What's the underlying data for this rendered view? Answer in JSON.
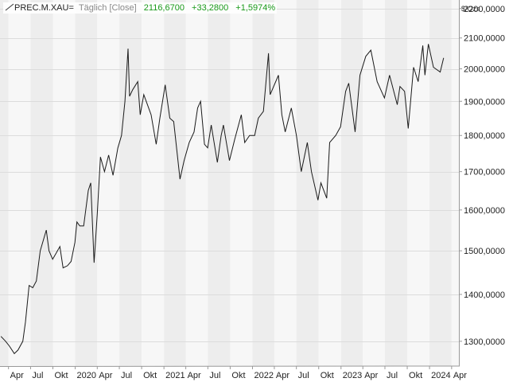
{
  "header": {
    "symbol": "PREC.M.XAU=",
    "period": "Täglich [Close]",
    "last": "2116,6700",
    "change": "+33,2800",
    "change_pct": "+1,5974%"
  },
  "unit": "$/Ozs",
  "colors": {
    "line": "#1a1a1a",
    "positive": "#1a9a1a",
    "band_dark": "#ededed",
    "band_light": "#f7f7f7",
    "grid": "#dcdcdc"
  },
  "chart_data": {
    "type": "line",
    "series": [
      {
        "values": [
          [
            "2019-03-01",
            1310
          ],
          [
            "2019-03-20",
            1300
          ],
          [
            "2019-04-05",
            1290
          ],
          [
            "2019-04-25",
            1275
          ],
          [
            "2019-05-10",
            1282
          ],
          [
            "2019-05-30",
            1300
          ],
          [
            "2019-06-10",
            1340
          ],
          [
            "2019-06-25",
            1420
          ],
          [
            "2019-07-10",
            1415
          ],
          [
            "2019-07-25",
            1430
          ],
          [
            "2019-08-10",
            1500
          ],
          [
            "2019-08-25",
            1530
          ],
          [
            "2019-09-04",
            1550
          ],
          [
            "2019-09-15",
            1500
          ],
          [
            "2019-09-30",
            1480
          ],
          [
            "2019-10-15",
            1495
          ],
          [
            "2019-10-30",
            1510
          ],
          [
            "2019-11-12",
            1460
          ],
          [
            "2019-11-30",
            1465
          ],
          [
            "2019-12-15",
            1475
          ],
          [
            "2019-12-31",
            1520
          ],
          [
            "2020-01-08",
            1570
          ],
          [
            "2020-01-20",
            1560
          ],
          [
            "2020-02-05",
            1560
          ],
          [
            "2020-02-24",
            1650
          ],
          [
            "2020-03-05",
            1670
          ],
          [
            "2020-03-19",
            1472
          ],
          [
            "2020-04-01",
            1590
          ],
          [
            "2020-04-14",
            1740
          ],
          [
            "2020-05-01",
            1700
          ],
          [
            "2020-05-18",
            1745
          ],
          [
            "2020-06-05",
            1690
          ],
          [
            "2020-06-25",
            1765
          ],
          [
            "2020-07-10",
            1800
          ],
          [
            "2020-07-24",
            1900
          ],
          [
            "2020-08-06",
            2065
          ],
          [
            "2020-08-12",
            1915
          ],
          [
            "2020-08-25",
            1935
          ],
          [
            "2020-09-15",
            1960
          ],
          [
            "2020-09-25",
            1860
          ],
          [
            "2020-10-10",
            1920
          ],
          [
            "2020-10-30",
            1880
          ],
          [
            "2020-11-09",
            1860
          ],
          [
            "2020-11-30",
            1775
          ],
          [
            "2020-12-15",
            1850
          ],
          [
            "2021-01-06",
            1950
          ],
          [
            "2021-01-25",
            1850
          ],
          [
            "2021-02-10",
            1840
          ],
          [
            "2021-03-08",
            1680
          ],
          [
            "2021-03-25",
            1730
          ],
          [
            "2021-04-15",
            1780
          ],
          [
            "2021-05-05",
            1810
          ],
          [
            "2021-05-20",
            1880
          ],
          [
            "2021-06-01",
            1900
          ],
          [
            "2021-06-17",
            1775
          ],
          [
            "2021-06-30",
            1765
          ],
          [
            "2021-07-15",
            1830
          ],
          [
            "2021-08-09",
            1725
          ],
          [
            "2021-08-25",
            1800
          ],
          [
            "2021-09-03",
            1830
          ],
          [
            "2021-09-28",
            1730
          ],
          [
            "2021-10-20",
            1790
          ],
          [
            "2021-11-16",
            1860
          ],
          [
            "2021-11-30",
            1780
          ],
          [
            "2021-12-20",
            1800
          ],
          [
            "2022-01-10",
            1800
          ],
          [
            "2022-01-25",
            1850
          ],
          [
            "2022-02-15",
            1870
          ],
          [
            "2022-03-08",
            2050
          ],
          [
            "2022-03-15",
            1920
          ],
          [
            "2022-04-18",
            1980
          ],
          [
            "2022-05-02",
            1860
          ],
          [
            "2022-05-16",
            1810
          ],
          [
            "2022-06-10",
            1880
          ],
          [
            "2022-07-01",
            1800
          ],
          [
            "2022-07-21",
            1700
          ],
          [
            "2022-08-15",
            1780
          ],
          [
            "2022-09-01",
            1700
          ],
          [
            "2022-09-28",
            1625
          ],
          [
            "2022-10-10",
            1670
          ],
          [
            "2022-11-03",
            1630
          ],
          [
            "2022-11-15",
            1780
          ],
          [
            "2022-12-10",
            1800
          ],
          [
            "2022-12-30",
            1825
          ],
          [
            "2023-01-20",
            1930
          ],
          [
            "2023-02-02",
            1955
          ],
          [
            "2023-02-28",
            1810
          ],
          [
            "2023-03-20",
            1980
          ],
          [
            "2023-04-13",
            2040
          ],
          [
            "2023-05-04",
            2060
          ],
          [
            "2023-05-30",
            1960
          ],
          [
            "2023-06-29",
            1910
          ],
          [
            "2023-07-20",
            1980
          ],
          [
            "2023-08-21",
            1890
          ],
          [
            "2023-09-01",
            1945
          ],
          [
            "2023-09-20",
            1930
          ],
          [
            "2023-10-05",
            1820
          ],
          [
            "2023-10-27",
            2005
          ],
          [
            "2023-11-15",
            1960
          ],
          [
            "2023-12-04",
            2075
          ],
          [
            "2023-12-13",
            1980
          ],
          [
            "2023-12-27",
            2080
          ],
          [
            "2024-01-17",
            2005
          ],
          [
            "2024-02-14",
            1990
          ],
          [
            "2024-02-28",
            2035
          ]
        ]
      }
    ],
    "y_ticks": [
      "2200,0000",
      "2100,0000",
      "2000,0000",
      "1900,0000",
      "1800,0000",
      "1700,0000",
      "1600,0000",
      "1500,0000",
      "1400,0000",
      "1300,0000"
    ],
    "y_tick_values": [
      2200,
      2100,
      2000,
      1900,
      1800,
      1700,
      1600,
      1500,
      1400,
      1300
    ],
    "x_ticks": [
      {
        "date": "2019-04-01",
        "label": "Apr"
      },
      {
        "date": "2019-07-01",
        "label": "Jul"
      },
      {
        "date": "2019-10-01",
        "label": "Okt"
      },
      {
        "date": "2020-01-01",
        "label": "2020"
      },
      {
        "date": "2020-04-01",
        "label": "Apr"
      },
      {
        "date": "2020-07-01",
        "label": "Jul"
      },
      {
        "date": "2020-10-01",
        "label": "Okt"
      },
      {
        "date": "2021-01-01",
        "label": "2021"
      },
      {
        "date": "2021-04-01",
        "label": "Apr"
      },
      {
        "date": "2021-07-01",
        "label": "Jul"
      },
      {
        "date": "2021-10-01",
        "label": "Okt"
      },
      {
        "date": "2022-01-01",
        "label": "2022"
      },
      {
        "date": "2022-04-01",
        "label": "Apr"
      },
      {
        "date": "2022-07-01",
        "label": "Jul"
      },
      {
        "date": "2022-10-01",
        "label": "Okt"
      },
      {
        "date": "2023-01-01",
        "label": "2023"
      },
      {
        "date": "2023-04-01",
        "label": "Apr"
      },
      {
        "date": "2023-07-01",
        "label": "Jul"
      },
      {
        "date": "2023-10-01",
        "label": "Okt"
      },
      {
        "date": "2024-01-01",
        "label": "2024"
      },
      {
        "date": "2024-04-01",
        "label": "Apr"
      }
    ],
    "xlim": [
      "2019-02-25",
      "2024-05-01"
    ],
    "ylim": [
      1250,
      2230
    ],
    "y_scale": "log",
    "grid": true,
    "legend": "none"
  }
}
